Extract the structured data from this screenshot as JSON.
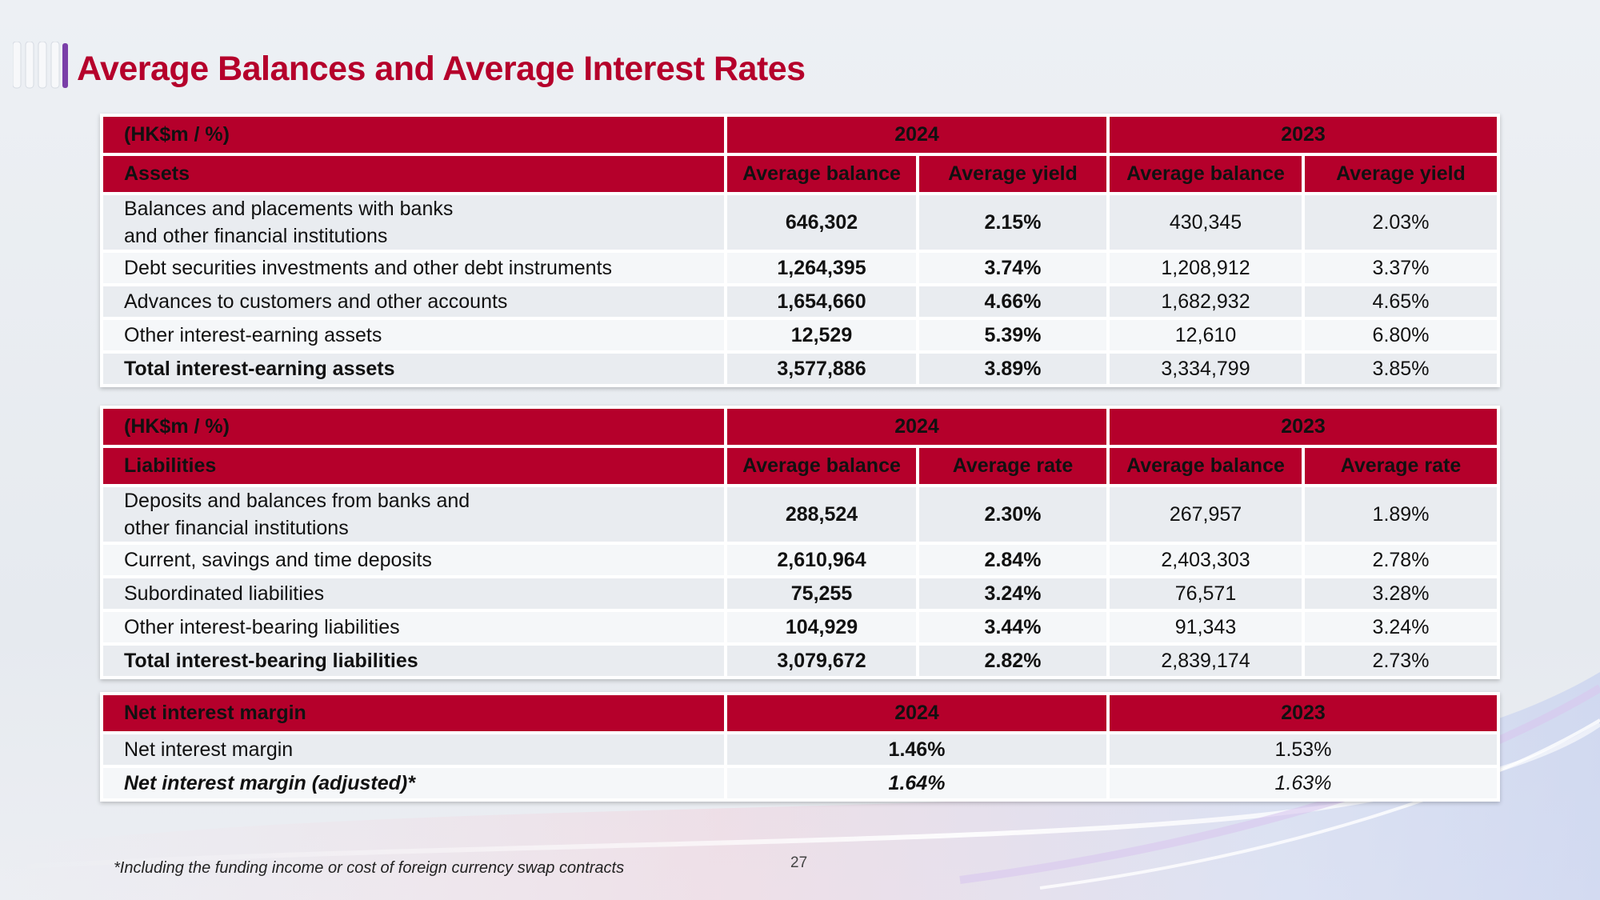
{
  "title": "Average Balances and Average Interest Rates",
  "colors": {
    "brand": "#b5002b",
    "row_light": "#f5f7f9",
    "row_dark": "#e9ecf0"
  },
  "assets_table": {
    "unit_label": "(HK$m / %)",
    "year_2024": "2024",
    "year_2023": "2023",
    "section_label": "Assets",
    "col_balance": "Average balance",
    "col_rate": "Average yield",
    "rows": [
      {
        "label_line1": "Balances and placements with banks",
        "label_line2": "and other financial institutions",
        "bal_2024": "646,302",
        "rate_2024": "2.15%",
        "bal_2023": "430,345",
        "rate_2023": "2.03%"
      },
      {
        "label": "Debt securities investments and other debt instruments",
        "bal_2024": "1,264,395",
        "rate_2024": "3.74%",
        "bal_2023": "1,208,912",
        "rate_2023": "3.37%"
      },
      {
        "label": "Advances to customers and other accounts",
        "bal_2024": "1,654,660",
        "rate_2024": "4.66%",
        "bal_2023": "1,682,932",
        "rate_2023": "4.65%"
      },
      {
        "label": "Other interest-earning assets",
        "bal_2024": "12,529",
        "rate_2024": "5.39%",
        "bal_2023": "12,610",
        "rate_2023": "6.80%"
      },
      {
        "label": "Total interest-earning assets",
        "bal_2024": "3,577,886",
        "rate_2024": "3.89%",
        "bal_2023": "3,334,799",
        "rate_2023": "3.85%"
      }
    ]
  },
  "liabilities_table": {
    "unit_label": "(HK$m / %)",
    "year_2024": "2024",
    "year_2023": "2023",
    "section_label": "Liabilities",
    "col_balance": "Average balance",
    "col_rate": "Average rate",
    "rows": [
      {
        "label_line1": "Deposits and balances from banks and",
        "label_line2": "other financial institutions",
        "bal_2024": "288,524",
        "rate_2024": "2.30%",
        "bal_2023": "267,957",
        "rate_2023": "1.89%"
      },
      {
        "label": "Current, savings and time deposits",
        "bal_2024": "2,610,964",
        "rate_2024": "2.84%",
        "bal_2023": "2,403,303",
        "rate_2023": "2.78%"
      },
      {
        "label": "Subordinated liabilities",
        "bal_2024": "75,255",
        "rate_2024": "3.24%",
        "bal_2023": "76,571",
        "rate_2023": "3.28%"
      },
      {
        "label": "Other interest-bearing liabilities",
        "bal_2024": "104,929",
        "rate_2024": "3.44%",
        "bal_2023": "91,343",
        "rate_2023": "3.24%"
      },
      {
        "label": "Total interest-bearing liabilities",
        "bal_2024": "3,079,672",
        "rate_2024": "2.82%",
        "bal_2023": "2,839,174",
        "rate_2023": "2.73%"
      }
    ]
  },
  "nim_table": {
    "header_label": "Net interest margin",
    "year_2024": "2024",
    "year_2023": "2023",
    "rows": [
      {
        "label": "Net interest margin",
        "v2024": "1.46%",
        "v2023": "1.53%"
      },
      {
        "label": "Net interest margin (adjusted)*",
        "v2024": "1.64%",
        "v2023": "1.63%"
      }
    ]
  },
  "footnote": "*Including the funding income or cost of foreign currency swap contracts",
  "page_number": "27"
}
